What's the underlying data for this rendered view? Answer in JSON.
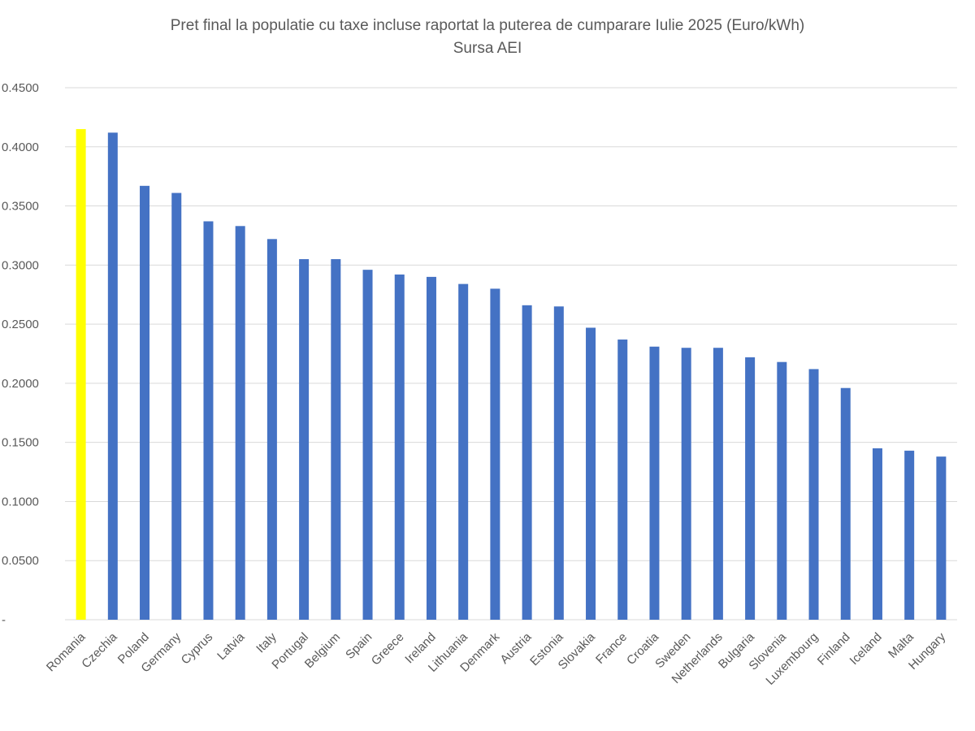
{
  "chart_data": {
    "type": "bar",
    "title": "Pret final la populatie cu taxe incluse raportat la puterea de cumparare Iulie 2025 (Euro/kWh)",
    "subtitle": "Sursa AEI",
    "categories": [
      "Romania",
      "Czechia",
      "Poland",
      "Germany",
      "Cyprus",
      "Latvia",
      "Italy",
      "Portugal",
      "Belgium",
      "Spain",
      "Greece",
      "Ireland",
      "Lithuania",
      "Denmark",
      "Austria",
      "Estonia",
      "Slovakia",
      "France",
      "Croatia",
      "Sweden",
      "Netherlands",
      "Bulgaria",
      "Slovenia",
      "Luxembourg",
      "Finland",
      "Iceland",
      "Malta",
      "Hungary"
    ],
    "series": [
      {
        "values": [
          0.415,
          0.412,
          0.367,
          0.361,
          0.337,
          0.333,
          0.322,
          0.305,
          0.305,
          0.296,
          0.292,
          0.29,
          0.284,
          0.28,
          0.266,
          0.265,
          0.247,
          0.237,
          0.231,
          0.23,
          0.23,
          0.222,
          0.218,
          0.212,
          0.196,
          0.145,
          0.143,
          0.138
        ]
      }
    ],
    "highlight_category": "Romania",
    "colors": {
      "bar": "#4472C4",
      "highlight": "#FFFF00",
      "grid": "#D9D9D9",
      "text": "#595959"
    },
    "ylim": [
      0,
      0.45
    ],
    "yticks": [
      0,
      0.05,
      0.1,
      0.15,
      0.2,
      0.25,
      0.3,
      0.35,
      0.4,
      0.45
    ],
    "ytick_labels": [
      "-",
      "0.0500",
      "0.1000",
      "0.1500",
      "0.2000",
      "0.2500",
      "0.3000",
      "0.3500",
      "0.4000",
      "0.4500"
    ],
    "grid": true,
    "legend": "none"
  }
}
